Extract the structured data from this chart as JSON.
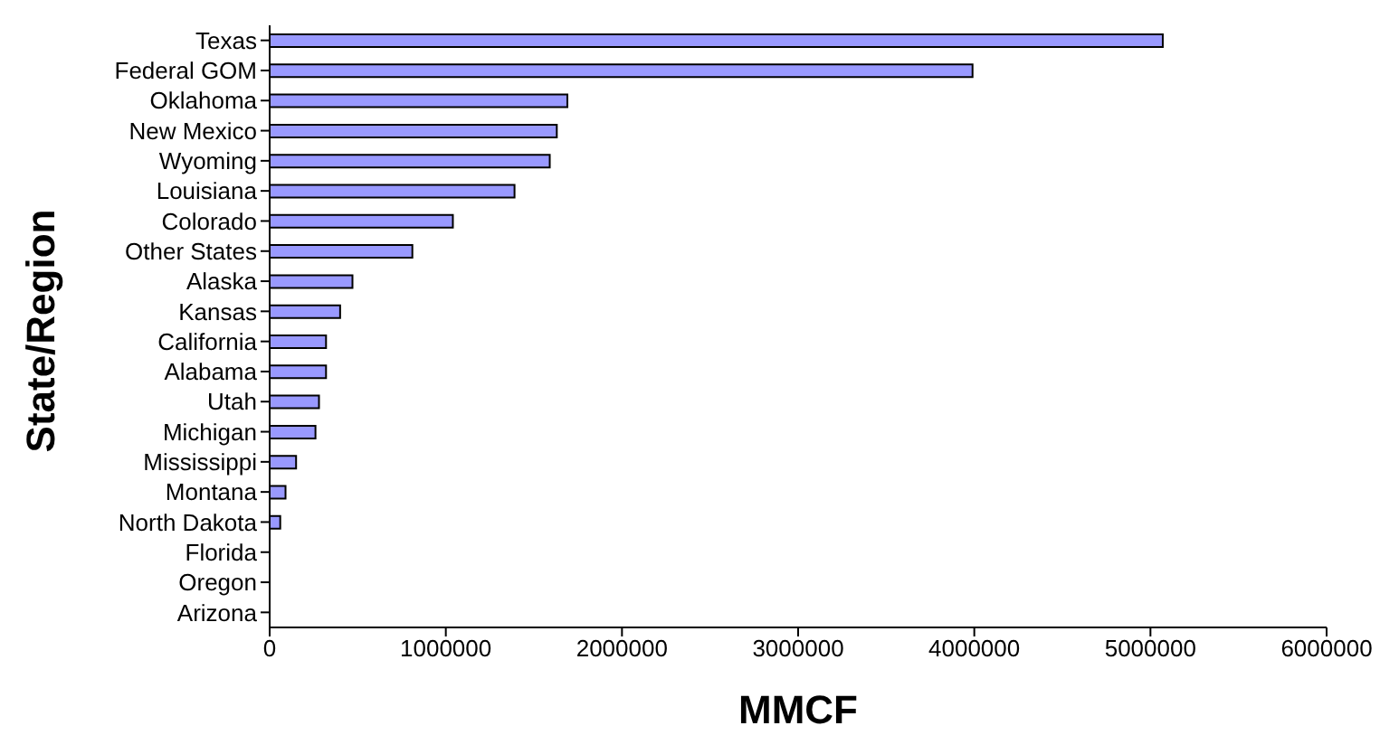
{
  "chart_data": {
    "type": "bar",
    "orientation": "horizontal",
    "xlabel": "MMCF",
    "ylabel": "State/Region",
    "categories": [
      "Texas",
      "Federal GOM",
      "Oklahoma",
      "New Mexico",
      "Wyoming",
      "Louisiana",
      "Colorado",
      "Other States",
      "Alaska",
      "Kansas",
      "California",
      "Alabama",
      "Utah",
      "Michigan",
      "Mississippi",
      "Montana",
      "North Dakota",
      "Florida",
      "Oregon",
      "Arizona"
    ],
    "values": [
      5070000,
      3990000,
      1690000,
      1630000,
      1590000,
      1390000,
      1040000,
      810000,
      470000,
      400000,
      320000,
      320000,
      280000,
      260000,
      150000,
      90000,
      60000,
      0,
      0,
      0
    ],
    "color": "#9999ff",
    "xlim": [
      0,
      6000000
    ],
    "xticks": [
      0,
      1000000,
      2000000,
      3000000,
      4000000,
      5000000,
      6000000
    ],
    "grid": false,
    "legend": false
  }
}
